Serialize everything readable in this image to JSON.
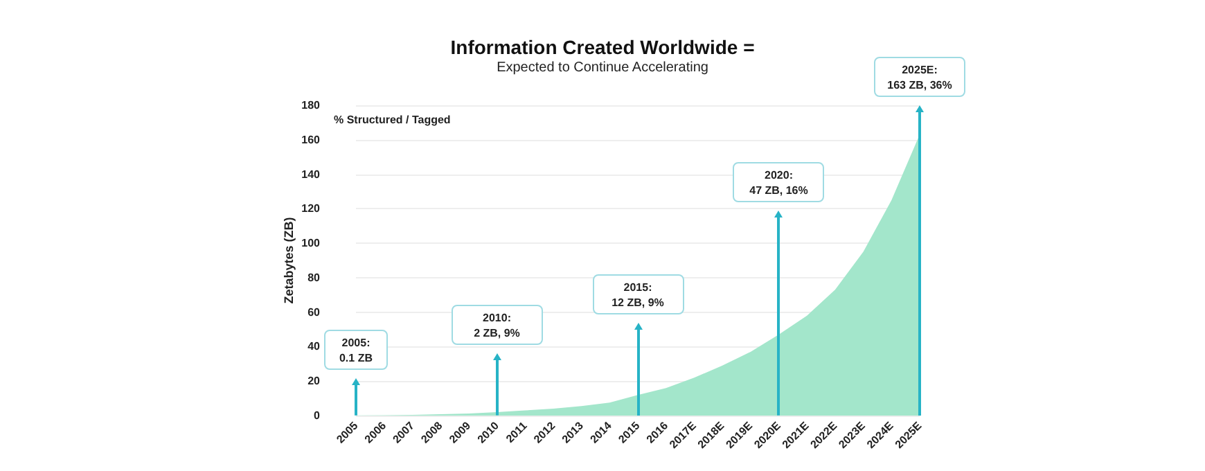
{
  "chart_data": {
    "type": "area",
    "title": "Information Created Worldwide =",
    "subtitle": "Expected to Continue Accelerating",
    "ylabel": "Zetabytes (ZB)",
    "categories": [
      "2005",
      "2006",
      "2007",
      "2008",
      "2009",
      "2010",
      "2011",
      "2012",
      "2013",
      "2014",
      "2015",
      "2016",
      "2017E",
      "2018E",
      "2019E",
      "2020E",
      "2021E",
      "2022E",
      "2023E",
      "2024E",
      "2025E"
    ],
    "series": [
      {
        "color": "#a3e6cb",
        "values": [
          0.1,
          0.2,
          0.4,
          0.8,
          1.2,
          2,
          3,
          4,
          5.5,
          7.5,
          12,
          16,
          22,
          29,
          37,
          47,
          58,
          73,
          95,
          125,
          163
        ]
      }
    ],
    "ylim": [
      0,
      180
    ],
    "yticks": [
      0,
      20,
      40,
      60,
      80,
      100,
      120,
      140,
      160,
      180
    ],
    "grid": "y",
    "annotations": [
      "% Structured / Tagged",
      "2005:\n0.1 ZB",
      "2010:\n2 ZB, 9%",
      "2015:\n12 ZB, 9%",
      "2020:\n47 ZB, 16%",
      "2025E:\n163 ZB, 36%"
    ]
  }
}
